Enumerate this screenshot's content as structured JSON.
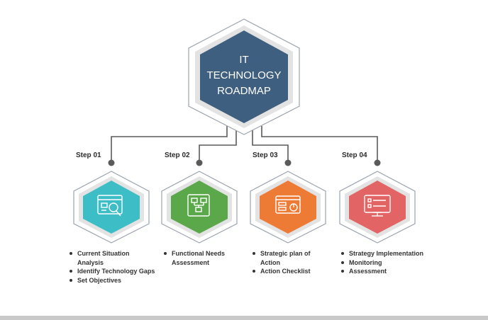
{
  "title_lines": [
    "IT",
    "TECHNOLOGY",
    "ROADMAP"
  ],
  "colors": {
    "hero": "#3f5f80",
    "connector": "#5a5a5a",
    "step1": "#3dbdc6",
    "step2": "#5aa84a",
    "step3": "#ee7b35",
    "step4": "#e26464"
  },
  "steps": [
    {
      "label": "Step 01",
      "icon": "analysis-magnifier-icon",
      "bullets": [
        "Current Situation Analysis",
        "Identify Technology Gaps",
        "Set Objectives"
      ]
    },
    {
      "label": "Step 02",
      "icon": "needs-flowchart-icon",
      "bullets": [
        "Functional Needs Assessment"
      ]
    },
    {
      "label": "Step 03",
      "icon": "action-plan-dashboard-icon",
      "bullets": [
        "Strategic plan of Action",
        "Action Checklist"
      ]
    },
    {
      "label": "Step 04",
      "icon": "monitor-checklist-icon",
      "bullets": [
        "Strategy Implementation",
        "Monitoring",
        "Assessment"
      ]
    }
  ]
}
